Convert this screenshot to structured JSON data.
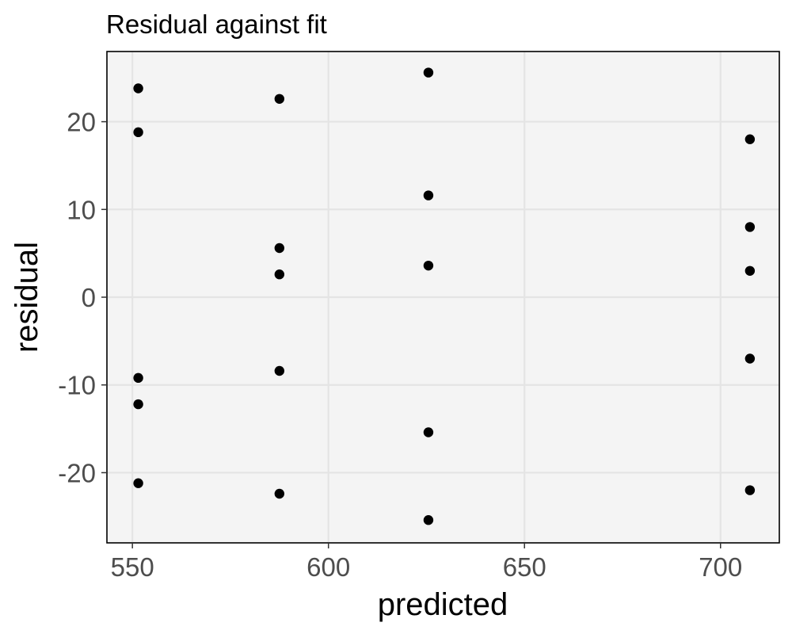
{
  "chart_data": {
    "type": "scatter",
    "title": "Residual against fit",
    "xlabel": "predicted",
    "ylabel": "residual",
    "xlim": [
      543.5,
      715
    ],
    "ylim": [
      -28,
      28
    ],
    "x_ticks": [
      550,
      600,
      650,
      700
    ],
    "y_ticks": [
      -20,
      -10,
      0,
      10,
      20
    ],
    "x_tick_labels": [
      "550",
      "600",
      "650",
      "700"
    ],
    "y_tick_labels": [
      "-20",
      "-10",
      "0",
      "10",
      "20"
    ],
    "grid": true,
    "legend": "none",
    "points": [
      {
        "x": 551.5,
        "y": 23.8
      },
      {
        "x": 551.5,
        "y": 18.8
      },
      {
        "x": 551.5,
        "y": -9.2
      },
      {
        "x": 551.5,
        "y": -12.2
      },
      {
        "x": 551.5,
        "y": -21.2
      },
      {
        "x": 587.5,
        "y": 22.6
      },
      {
        "x": 587.5,
        "y": 5.6
      },
      {
        "x": 587.5,
        "y": 2.6
      },
      {
        "x": 587.5,
        "y": -8.4
      },
      {
        "x": 587.5,
        "y": -22.4
      },
      {
        "x": 625.5,
        "y": 25.6
      },
      {
        "x": 625.5,
        "y": 11.6
      },
      {
        "x": 625.5,
        "y": 3.6
      },
      {
        "x": 625.5,
        "y": -15.4
      },
      {
        "x": 625.5,
        "y": -25.4
      },
      {
        "x": 707.5,
        "y": 18.0
      },
      {
        "x": 707.5,
        "y": 8.0
      },
      {
        "x": 707.5,
        "y": 3.0
      },
      {
        "x": 707.5,
        "y": -7.0
      },
      {
        "x": 707.5,
        "y": -22.0
      }
    ]
  },
  "colors": {
    "panel_background": "#f4f4f4",
    "grid_line": "#e4e4e4",
    "panel_border": "#000000",
    "point": "#000000",
    "tick_label": "#4d4d4d",
    "text": "#000000"
  }
}
